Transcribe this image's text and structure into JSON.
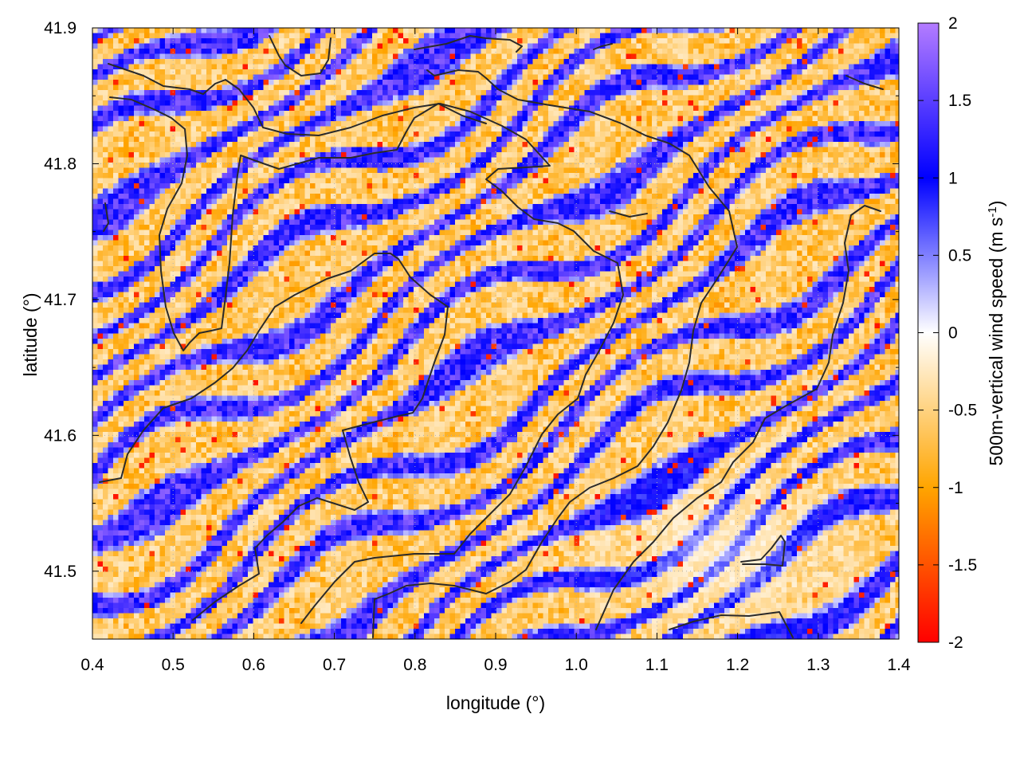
{
  "chart_data": {
    "type": "heatmap",
    "title": "",
    "xlabel": "longitude (°)",
    "ylabel": "latitude (°)",
    "colorbar_label": "500m-vertical wind speed (m s-1)",
    "colorbar_label_main": "500m-vertical wind speed (m s",
    "colorbar_label_sup": "-1",
    "colorbar_label_end": ")",
    "xlim": [
      0.4,
      1.4
    ],
    "ylim": [
      41.45,
      41.9
    ],
    "xticks": [
      "0.4",
      "0.5",
      "0.6",
      "0.7",
      "0.8",
      "0.9",
      "1.0",
      "1.1",
      "1.2",
      "1.3",
      "1.4"
    ],
    "yticks": [
      "41.5",
      "41.6",
      "41.7",
      "41.8",
      "41.9"
    ],
    "clim": [
      -2,
      2
    ],
    "cbticks": [
      "-2",
      "-1.5",
      "-1",
      "-0.5",
      "0",
      "0.5",
      "1",
      "1.5",
      "2"
    ],
    "colormap": [
      {
        "v": -2,
        "color": "#ff0000"
      },
      {
        "v": -1,
        "color": "#ffa500"
      },
      {
        "v": 0,
        "color": "#ffffff"
      },
      {
        "v": 1,
        "color": "#0000ff"
      },
      {
        "v": 2,
        "color": "#b47cff"
      }
    ],
    "grid": true,
    "overlay": "black boundary contours"
  },
  "colors": {
    "contour": "#2a2a2a",
    "axis": "#000000",
    "grid": "#b0b0b0"
  }
}
